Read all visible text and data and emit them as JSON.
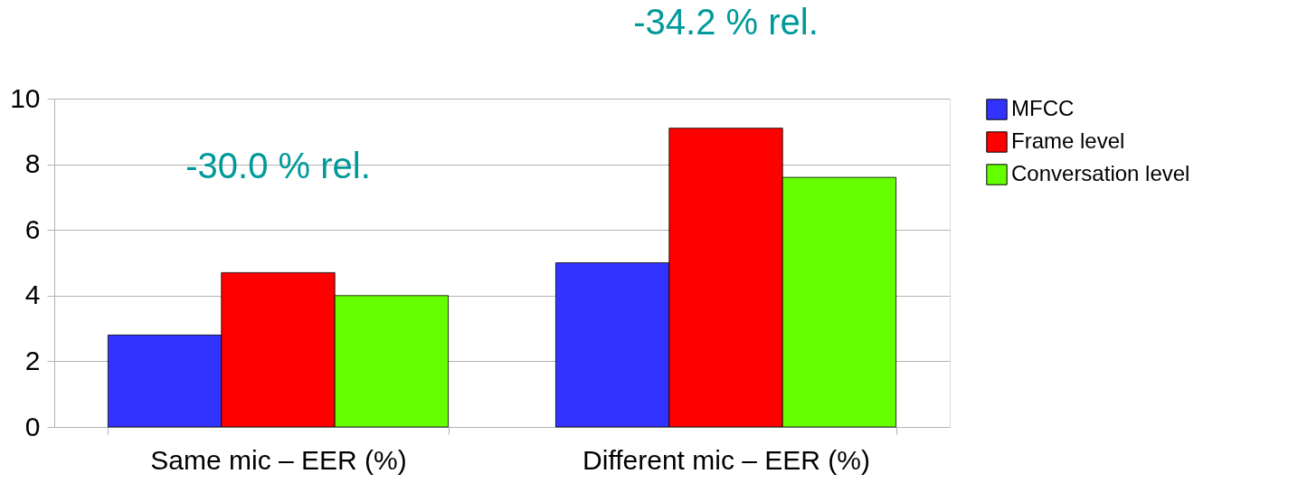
{
  "chart_data": {
    "type": "bar",
    "categories": [
      "Same mic – EER (%)",
      "Different mic – EER (%)"
    ],
    "series": [
      {
        "name": "MFCC",
        "color": "#3333ff",
        "values": [
          2.8,
          5.0
        ]
      },
      {
        "name": "Frame level",
        "color": "#ff0000",
        "values": [
          4.7,
          9.1
        ]
      },
      {
        "name": "Conversation level",
        "color": "#66ff00",
        "values": [
          4.0,
          7.6
        ]
      }
    ],
    "ylim": [
      0,
      10
    ],
    "yticks": [
      0,
      2,
      4,
      6,
      8,
      10
    ],
    "grid": "y",
    "legend": "right",
    "annotations": [
      "-30.0 % rel.",
      "-34.2 % rel."
    ]
  }
}
